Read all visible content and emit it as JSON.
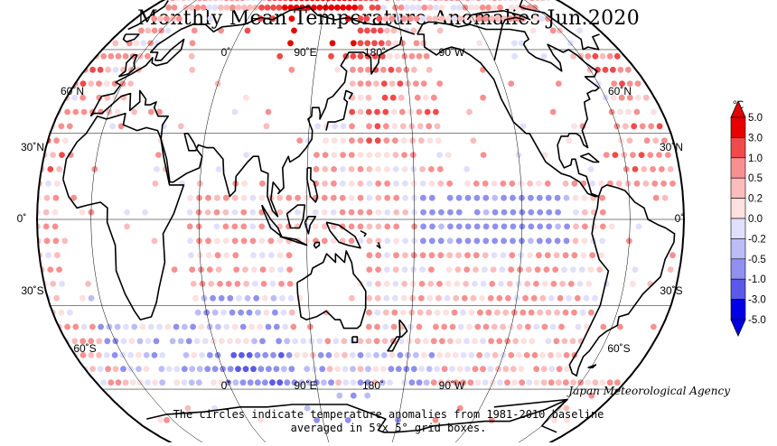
{
  "title": "Monthly Mean Temperature Anomalies Jun.2020",
  "credit": "Japan Meteorological Agency",
  "caption": {
    "line1": "The circles indicate temperature anomalies from 1981-2010 baseline",
    "line2": "averaged in 5°x 5° grid boxes."
  },
  "map": {
    "longitude_labels": [
      "0˚",
      "90˚E",
      "180˚",
      "90˚W"
    ],
    "latitude_labels_left": [
      "60˚N",
      "30˚N",
      "0˚",
      "30˚S",
      "60˚S"
    ],
    "latitude_labels_right": [
      "60˚N",
      "30˚N",
      "0˚",
      "30˚S",
      "60˚S"
    ],
    "grid_box_size": "5° x 5°",
    "projection": "Robinson, centered on 150°E"
  },
  "legend": {
    "unit": "℃",
    "breaks": [
      "5.0",
      "3.0",
      "1.0",
      "0.5",
      "0.2",
      "0.0",
      "-0.2",
      "-0.5",
      "-1.0",
      "-3.0",
      "-5.0"
    ],
    "colors": [
      "#e80000",
      "#f04a4a",
      "#f79090",
      "#fbbcbc",
      "#fde0e0",
      "#e0e0fd",
      "#bcbcf7",
      "#9090ef",
      "#5a5ae6",
      "#0000e6"
    ]
  }
}
